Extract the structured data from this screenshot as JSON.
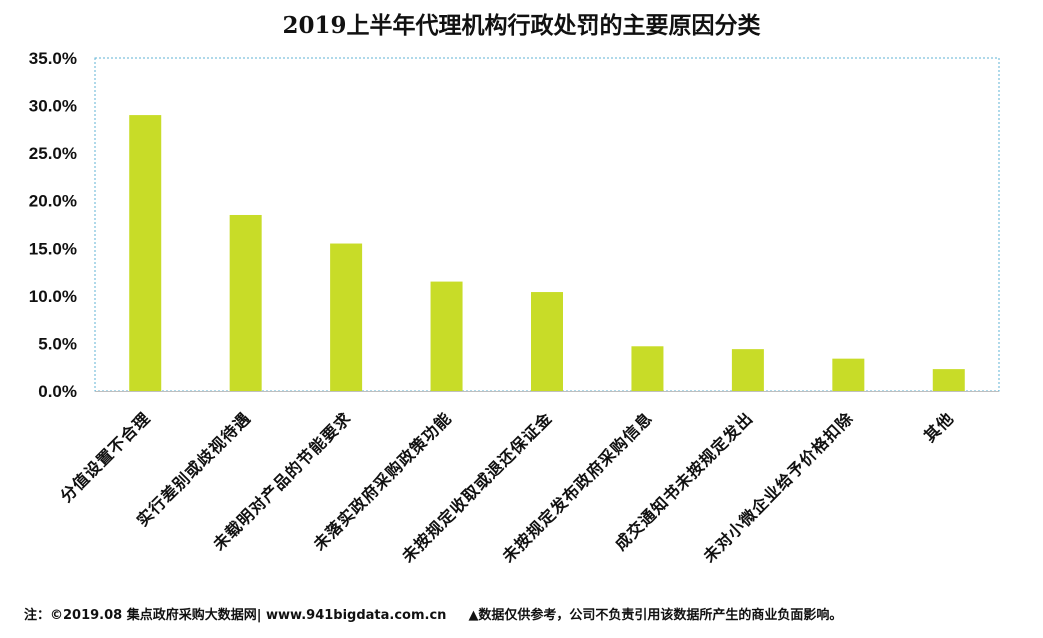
{
  "chart_data": {
    "type": "bar",
    "title": "2019上半年代理机构行政处罚的主要原因分类",
    "categories": [
      "分值设置不合理",
      "实行差别或歧视待遇",
      "未载明对产品的节能要求",
      "未落实政府采购政策功能",
      "未按规定收取或退还保证金",
      "未按规定发布政府采购信息",
      "成交通知书未按规定发出",
      "未对小微企业给予价格扣除",
      "其他"
    ],
    "values": [
      0.29,
      0.185,
      0.155,
      0.115,
      0.104,
      0.047,
      0.044,
      0.034,
      0.023
    ],
    "ylim": [
      0,
      0.35
    ],
    "yticks": [
      "0.0%",
      "5.0%",
      "10.0%",
      "15.0%",
      "20.0%",
      "25.0%",
      "30.0%",
      "35.0%"
    ],
    "bar_color": "#c8dc28",
    "grid": false,
    "plot_border_color": "#5fb3d6"
  },
  "footer": {
    "source": "注：©2019.08 集点政府采购大数据网| www.941bigdata.com.cn",
    "disclaimer": "▲数据仅供参考，公司不负责引用该数据所产生的商业负面影响。"
  }
}
